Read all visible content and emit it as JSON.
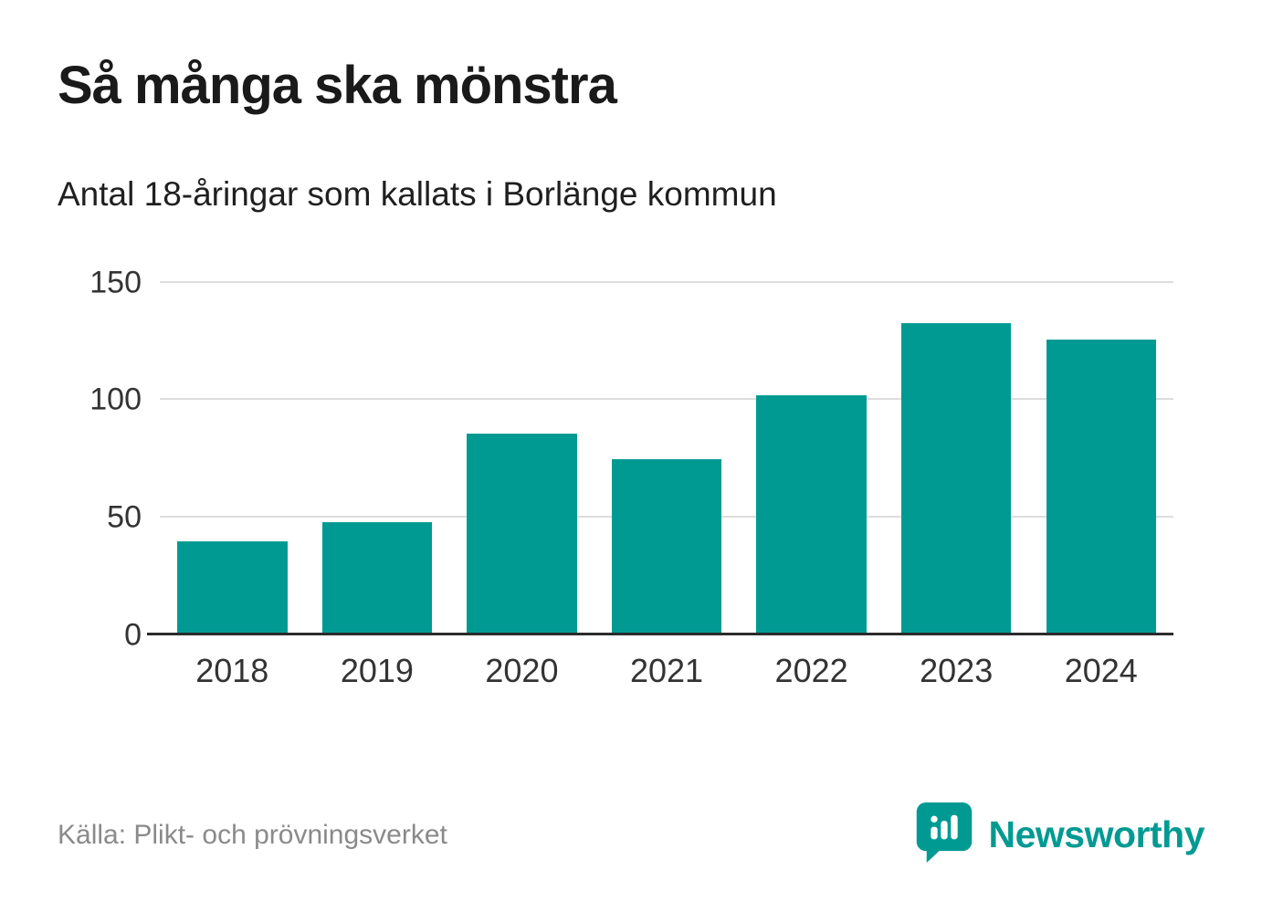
{
  "page": {
    "title": "Så många ska mönstra",
    "subtitle": "Antal 18-åringar som kallats i Borlänge kommun",
    "source": "Källa: Plikt- och prövningsverket",
    "brand": "Newsworthy"
  },
  "colors": {
    "accent": "#009a93",
    "bar": "#009a93",
    "grid": "#dddddd",
    "axis": "#2b2b2b",
    "tick_text": "#333333",
    "source_text": "#8a8a8a"
  },
  "chart_data": {
    "type": "bar",
    "categories": [
      "2018",
      "2019",
      "2020",
      "2021",
      "2022",
      "2023",
      "2024"
    ],
    "values": [
      40,
      48,
      86,
      75,
      102,
      133,
      126
    ],
    "title": "Så många ska mönstra",
    "subtitle": "Antal 18-åringar som kallats i Borlänge kommun",
    "xlabel": "",
    "ylabel": "",
    "ylim": [
      0,
      150
    ],
    "yticks": [
      0,
      50,
      100,
      150
    ],
    "grid": true,
    "legend": false,
    "bar_color": "#009a93",
    "source": "Källa: Plikt- och prövningsverket"
  }
}
